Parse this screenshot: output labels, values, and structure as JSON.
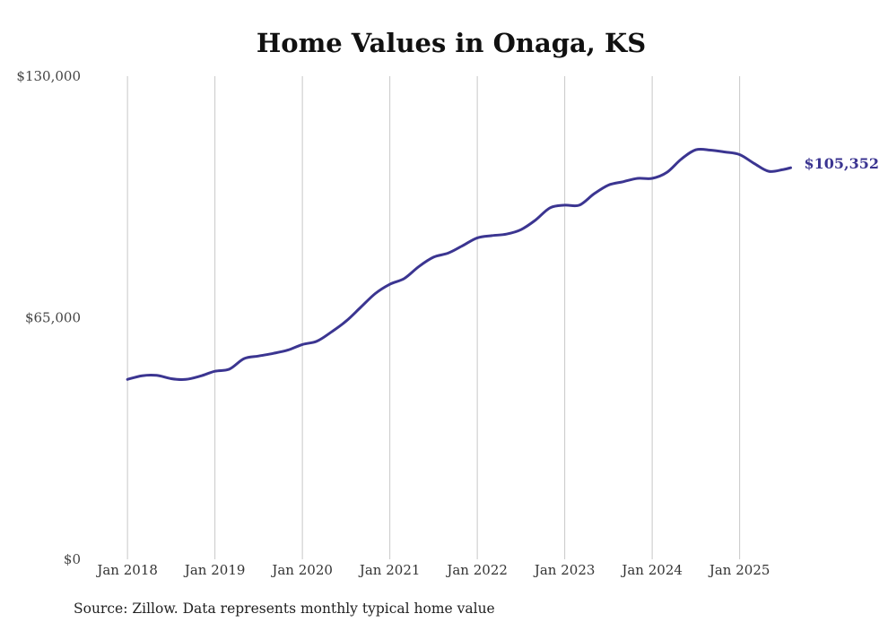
{
  "chart_data": {
    "type": "line",
    "title": "Home Values in Onaga, KS",
    "source": "Source: Zillow. Data represents monthly typical home value",
    "xlabel": "",
    "ylabel": "",
    "ylim": [
      0,
      130000
    ],
    "y_ticks": [
      {
        "value": 0,
        "label": "$0"
      },
      {
        "value": 65000,
        "label": "$65,000"
      },
      {
        "value": 130000,
        "label": "$130,000"
      }
    ],
    "x_ticks": [
      {
        "month": "2018-01",
        "label": "Jan 2018"
      },
      {
        "month": "2019-01",
        "label": "Jan 2019"
      },
      {
        "month": "2020-01",
        "label": "Jan 2020"
      },
      {
        "month": "2021-01",
        "label": "Jan 2021"
      },
      {
        "month": "2022-01",
        "label": "Jan 2022"
      },
      {
        "month": "2023-01",
        "label": "Jan 2023"
      },
      {
        "month": "2024-01",
        "label": "Jan 2024"
      },
      {
        "month": "2025-01",
        "label": "Jan 2025"
      }
    ],
    "grid": {
      "vertical": true,
      "horizontal": false
    },
    "line_color": "#3b3591",
    "end_label": "$105,352",
    "series": [
      {
        "x": [
          "2018-01",
          "2018-03",
          "2018-05",
          "2018-07",
          "2018-09",
          "2018-11",
          "2019-01",
          "2019-03",
          "2019-05",
          "2019-07",
          "2019-09",
          "2019-11",
          "2020-01",
          "2020-03",
          "2020-05",
          "2020-07",
          "2020-09",
          "2020-11",
          "2021-01",
          "2021-03",
          "2021-05",
          "2021-07",
          "2021-09",
          "2021-11",
          "2022-01",
          "2022-03",
          "2022-05",
          "2022-07",
          "2022-09",
          "2022-11",
          "2023-01",
          "2023-03",
          "2023-05",
          "2023-07",
          "2023-09",
          "2023-11",
          "2024-01",
          "2024-03",
          "2024-05",
          "2024-07",
          "2024-09",
          "2024-11",
          "2025-01",
          "2025-03",
          "2025-05",
          "2025-07",
          "2025-08"
        ],
        "values": [
          48400,
          49400,
          49500,
          48600,
          48400,
          49300,
          50600,
          51200,
          54000,
          54700,
          55400,
          56300,
          57800,
          58700,
          61200,
          64100,
          67800,
          71500,
          74000,
          75600,
          78800,
          81300,
          82400,
          84400,
          86500,
          87100,
          87500,
          88700,
          91300,
          94600,
          95300,
          95300,
          98300,
          100700,
          101600,
          102500,
          102500,
          104100,
          107700,
          110200,
          110100,
          109600,
          108900,
          106500,
          104400,
          104900,
          105352
        ]
      }
    ]
  }
}
